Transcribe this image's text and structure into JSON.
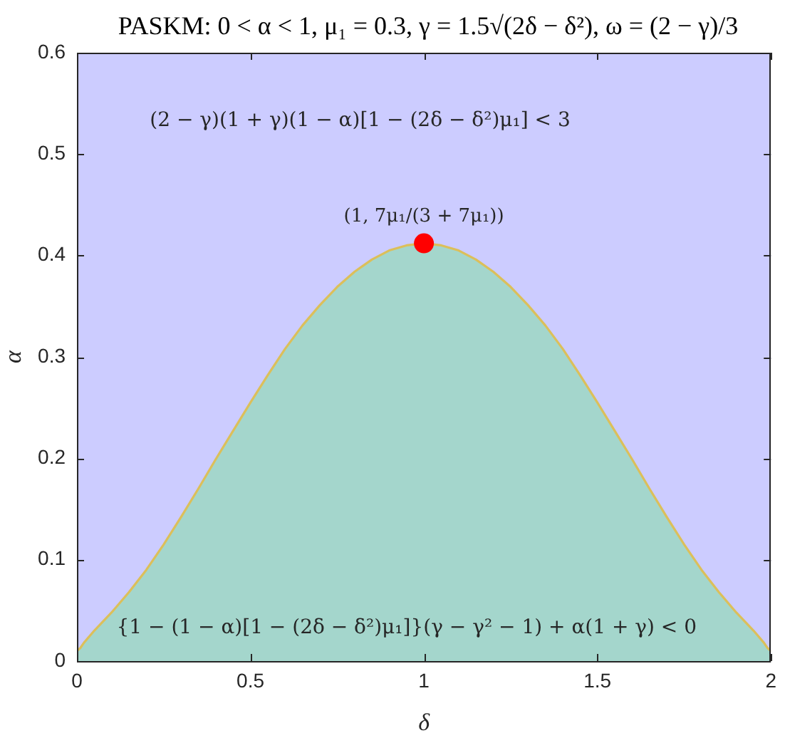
{
  "chart_data": {
    "type": "area",
    "title": "PASKM: 0 < α < 1, μ₁ = 0.3, γ = 1.5√(2δ − δ²), ω = (2 − γ)/3",
    "xlabel": "δ",
    "ylabel": "α",
    "x": [
      0,
      0.01,
      0.02,
      0.05,
      0.1,
      0.15,
      0.2,
      0.25,
      0.3,
      0.35,
      0.4,
      0.45,
      0.5,
      0.55,
      0.6,
      0.65,
      0.7,
      0.75,
      0.8,
      0.85,
      0.9,
      0.95,
      1,
      1.05,
      1.1,
      1.15,
      1.2,
      1.25,
      1.3,
      1.35,
      1.4,
      1.45,
      1.5,
      1.55,
      1.6,
      1.65,
      1.7,
      1.75,
      1.8,
      1.85,
      1.9,
      1.95,
      1.98,
      1.99,
      2
    ],
    "series": [
      {
        "color": "#a4d6cc",
        "values": [
          0.01,
          0.013,
          0.018,
          0.03,
          0.048,
          0.068,
          0.09,
          0.115,
          0.142,
          0.17,
          0.199,
          0.227,
          0.255,
          0.282,
          0.308,
          0.331,
          0.351,
          0.369,
          0.384,
          0.396,
          0.405,
          0.41,
          0.412,
          0.41,
          0.405,
          0.396,
          0.384,
          0.369,
          0.351,
          0.331,
          0.308,
          0.282,
          0.255,
          0.227,
          0.199,
          0.17,
          0.142,
          0.115,
          0.09,
          0.068,
          0.048,
          0.03,
          0.018,
          0.013,
          0.01
        ]
      },
      {
        "type": "line",
        "color": "#dcbf5a",
        "values": [
          0.01,
          0.013,
          0.018,
          0.03,
          0.048,
          0.068,
          0.09,
          0.115,
          0.142,
          0.17,
          0.199,
          0.227,
          0.255,
          0.282,
          0.308,
          0.331,
          0.351,
          0.369,
          0.384,
          0.396,
          0.405,
          0.41,
          0.412,
          0.41,
          0.405,
          0.396,
          0.384,
          0.369,
          0.351,
          0.331,
          0.308,
          0.282,
          0.255,
          0.227,
          0.199,
          0.17,
          0.142,
          0.115,
          0.09,
          0.068,
          0.048,
          0.03,
          0.018,
          0.013,
          0.01
        ]
      },
      {
        "type": "scatter",
        "color": "#ff0000",
        "marker": "circle",
        "x": [
          1
        ],
        "values": [
          0.412
        ]
      }
    ],
    "xlim": [
      0,
      2
    ],
    "ylim": [
      0,
      0.6
    ],
    "xticks": [
      0,
      0.5,
      1,
      1.5,
      2
    ],
    "yticks": [
      0,
      0.1,
      0.2,
      0.3,
      0.4,
      0.5,
      0.6
    ],
    "bands": [
      {
        "axis": "y",
        "from": 0,
        "to": 0.6,
        "color": "#ccccff"
      }
    ],
    "annotations": [
      "(2 − γ)(1 + γ)(1 − α)[1 − (2δ − δ²)μ₁] < 3",
      {
        "text": "(1, 7μ₁/(3 + 7μ₁))",
        "x": 1,
        "y": 0.412
      },
      "{1 − (1 − α)[1 − (2δ − δ²)μ₁]}(γ − γ² − 1) + α(1 + γ) < 0"
    ],
    "marker": "none"
  }
}
